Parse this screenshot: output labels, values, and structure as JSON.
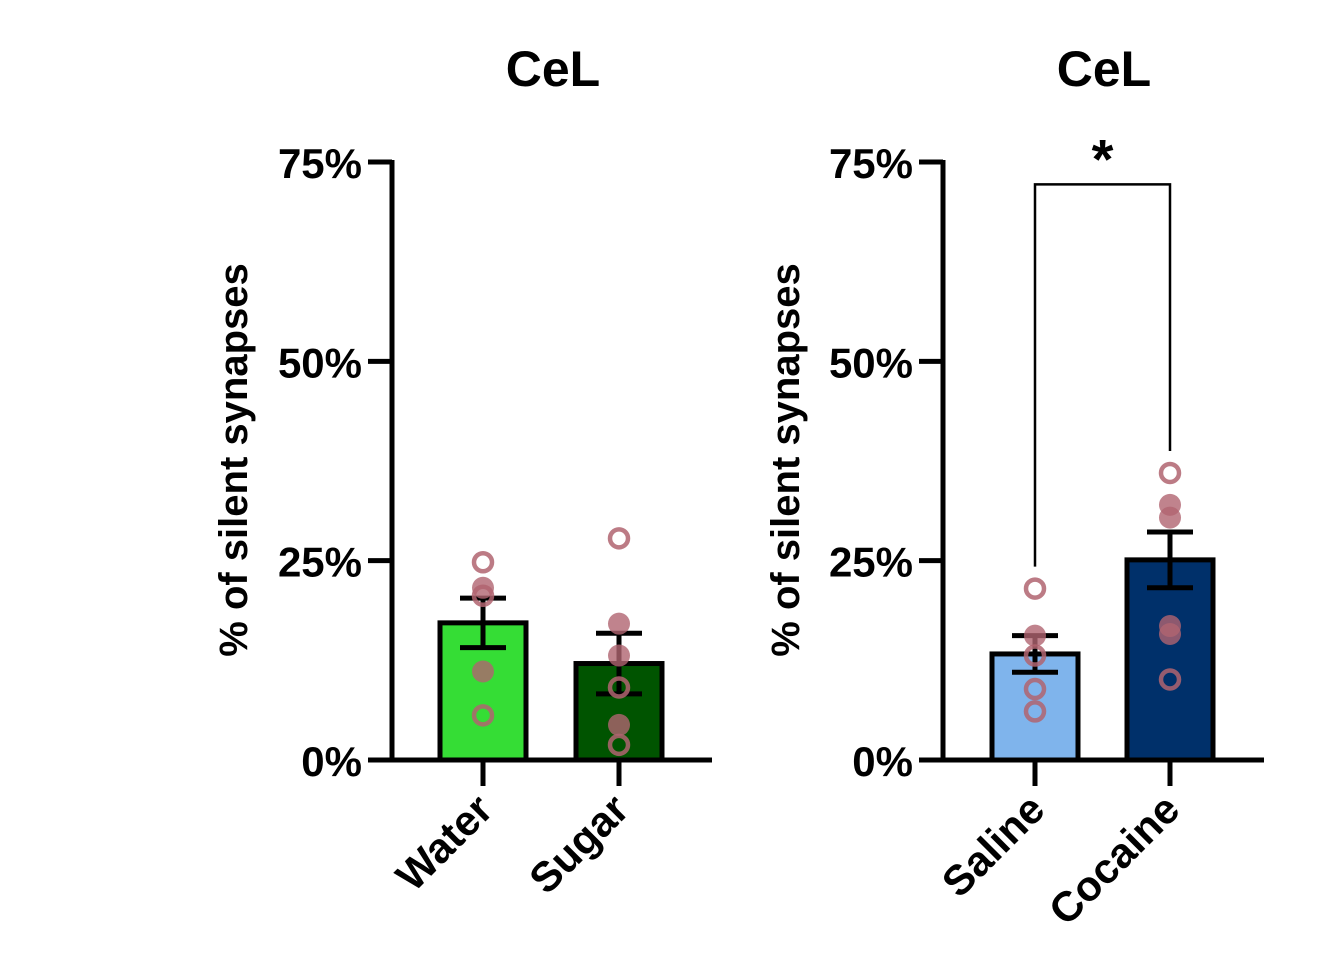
{
  "chart_data": [
    {
      "type": "bar",
      "title": "CeL",
      "ylabel": "% of silent synapses",
      "xlabel": "",
      "ylim": [
        0,
        75
      ],
      "yticks": [
        0,
        25,
        50,
        75
      ],
      "ytick_labels": [
        "0%",
        "25%",
        "50%",
        "75%"
      ],
      "categories": [
        "Water",
        "Sugar"
      ],
      "values": [
        17.2,
        12.1
      ],
      "sem": [
        3.1,
        3.8
      ],
      "bar_colors": [
        "#35dd35",
        "#005400"
      ],
      "points": [
        [
          {
            "y": 24.8,
            "filled": false
          },
          {
            "y": 21.6,
            "filled": true
          },
          {
            "y": 20.6,
            "filled": false
          },
          {
            "y": 11.1,
            "filled": true
          },
          {
            "y": 5.6,
            "filled": false
          }
        ],
        [
          {
            "y": 27.8,
            "filled": false
          },
          {
            "y": 17.1,
            "filled": true
          },
          {
            "y": 13.1,
            "filled": true
          },
          {
            "y": 9.1,
            "filled": false
          },
          {
            "y": 4.4,
            "filled": true
          },
          {
            "y": 1.9,
            "filled": false
          }
        ]
      ],
      "point_color": "#b06470",
      "grid": false,
      "significance": null
    },
    {
      "type": "bar",
      "title": "CeL",
      "ylabel": "% of silent synapses",
      "xlabel": "",
      "ylim": [
        0,
        75
      ],
      "yticks": [
        0,
        25,
        50,
        75
      ],
      "ytick_labels": [
        "0%",
        "25%",
        "50%",
        "75%"
      ],
      "categories": [
        "Saline",
        "Cocaine"
      ],
      "values": [
        13.3,
        25.1
      ],
      "sem": [
        2.3,
        3.5
      ],
      "bar_colors": [
        "#7fb4ec",
        "#00306a"
      ],
      "points": [
        [
          {
            "y": 21.5,
            "filled": false
          },
          {
            "y": 15.6,
            "filled": true
          },
          {
            "y": 13.1,
            "filled": false
          },
          {
            "y": 8.9,
            "filled": false
          },
          {
            "y": 6.1,
            "filled": false
          }
        ],
        [
          {
            "y": 36.0,
            "filled": false
          },
          {
            "y": 32.0,
            "filled": true
          },
          {
            "y": 30.4,
            "filled": true
          },
          {
            "y": 16.8,
            "filled": true
          },
          {
            "y": 15.8,
            "filled": true
          },
          {
            "y": 10.1,
            "filled": false
          }
        ]
      ],
      "point_color": "#b06470",
      "grid": false,
      "significance": {
        "label": "*",
        "between": [
          0,
          1
        ],
        "bracket_level": 72.2
      }
    }
  ]
}
